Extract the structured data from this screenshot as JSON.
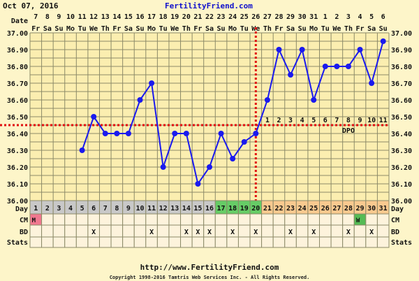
{
  "header": {
    "date": "Oct 07, 2016",
    "site": "FertilityFriend.com"
  },
  "footer": {
    "url": "http://www.FertilityFriend.com",
    "copyright": "Copyright 1998-2016 Tamtris Web Services Inc. - All Rights Reserved."
  },
  "row_labels": {
    "date": "Date",
    "day": "Day",
    "cm": "CM",
    "bd": "BD",
    "stats": "Stats",
    "dpo": "DPO"
  },
  "chart_data": {
    "type": "line",
    "title": "",
    "ylim": [
      36.0,
      37.0
    ],
    "y_ticks": [
      "36.00",
      "36.10",
      "36.20",
      "36.30",
      "36.40",
      "36.50",
      "36.60",
      "36.70",
      "36.80",
      "36.90",
      "37.00"
    ],
    "grid": true,
    "dates": [
      "7",
      "8",
      "9",
      "10",
      "11",
      "12",
      "13",
      "14",
      "15",
      "16",
      "17",
      "18",
      "19",
      "20",
      "21",
      "22",
      "23",
      "24",
      "25",
      "26",
      "27",
      "28",
      "29",
      "30",
      "31",
      "1",
      "2",
      "3",
      "4",
      "5",
      "6"
    ],
    "weekdays": [
      "Fr",
      "Sa",
      "Su",
      "Mo",
      "Tu",
      "We",
      "Th",
      "Fr",
      "Sa",
      "Su",
      "Mo",
      "Tu",
      "We",
      "Th",
      "Fr",
      "Sa",
      "Su",
      "Mo",
      "Tu",
      "We",
      "Th",
      "Fr",
      "Sa",
      "Su",
      "Mo",
      "Tu",
      "We",
      "Th",
      "Fr",
      "Sa",
      "Su"
    ],
    "days": [
      1,
      2,
      3,
      4,
      5,
      6,
      7,
      8,
      9,
      10,
      11,
      12,
      13,
      14,
      15,
      16,
      17,
      18,
      19,
      20,
      21,
      22,
      23,
      24,
      25,
      26,
      27,
      28,
      29,
      30,
      31
    ],
    "temperatures": [
      null,
      null,
      null,
      null,
      36.3,
      36.5,
      36.4,
      36.4,
      36.4,
      36.6,
      36.7,
      36.2,
      36.4,
      36.4,
      36.1,
      36.2,
      36.4,
      36.25,
      36.35,
      36.4,
      36.6,
      36.9,
      36.75,
      36.9,
      36.6,
      36.8,
      36.8,
      36.8,
      36.9,
      36.7,
      36.95
    ],
    "coverline": 36.45,
    "ovulation_day": 20,
    "dpo_labels": [
      "1",
      "2",
      "3",
      "4",
      "5",
      "6",
      "7",
      "8",
      "9",
      "10",
      "11"
    ],
    "dpo_start_day": 21,
    "day_colors": {
      "menstrual": "#c8c8c8",
      "fertile": "#66cc66",
      "luteal": "#f9c98f"
    },
    "fertile_days": [
      17,
      18,
      19,
      20
    ],
    "cm": [
      {
        "day": 1,
        "label": "M",
        "color": "#f07890"
      },
      {
        "day": 29,
        "label": "W",
        "color": "#55bb55"
      }
    ],
    "bd_days": [
      6,
      11,
      14,
      15,
      16,
      18,
      20,
      23,
      25,
      28,
      30
    ],
    "bd_mark": "X",
    "line_color": "#1a1aee",
    "coverline_color": "#e01010"
  }
}
